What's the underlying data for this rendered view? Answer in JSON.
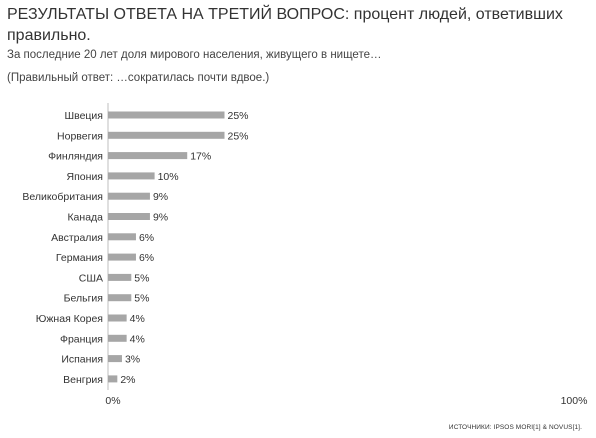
{
  "header": {
    "title": "РЕЗУЛЬТАТЫ ОТВЕТА НА ТРЕТИЙ ВОПРОС: процент людей, ответивших правильно.",
    "subtitle": "За последние 20 лет доля мирового населения, живущего в нищете…",
    "note": "(Правильный ответ: …сократилась почти вдвое.)"
  },
  "footer": {
    "source": "ИСТОЧНИКИ: IPSOS MORI[1] & NOVUS[1]."
  },
  "colors": {
    "bar": "#a6a6a6",
    "axis": "#bfbfbf",
    "text": "#333333"
  },
  "chart_data": {
    "type": "bar",
    "orientation": "horizontal",
    "categories": [
      "Швеция",
      "Норвегия",
      "Финляндия",
      "Япония",
      "Великобритания",
      "Канада",
      "Австралия",
      "Германия",
      "США",
      "Бельгия",
      "Южная Корея",
      "Франция",
      "Испания",
      "Венгрия"
    ],
    "values": [
      25,
      25,
      17,
      10,
      9,
      9,
      6,
      6,
      5,
      5,
      4,
      4,
      3,
      2
    ],
    "value_labels": [
      "25%",
      "25%",
      "17%",
      "10%",
      "9%",
      "9%",
      "6%",
      "6%",
      "5%",
      "5%",
      "4%",
      "4%",
      "3%",
      "2%"
    ],
    "xlim": [
      0,
      100
    ],
    "x_tick_labels": [
      "0%",
      "100%"
    ],
    "grid": false,
    "legend": "none"
  }
}
